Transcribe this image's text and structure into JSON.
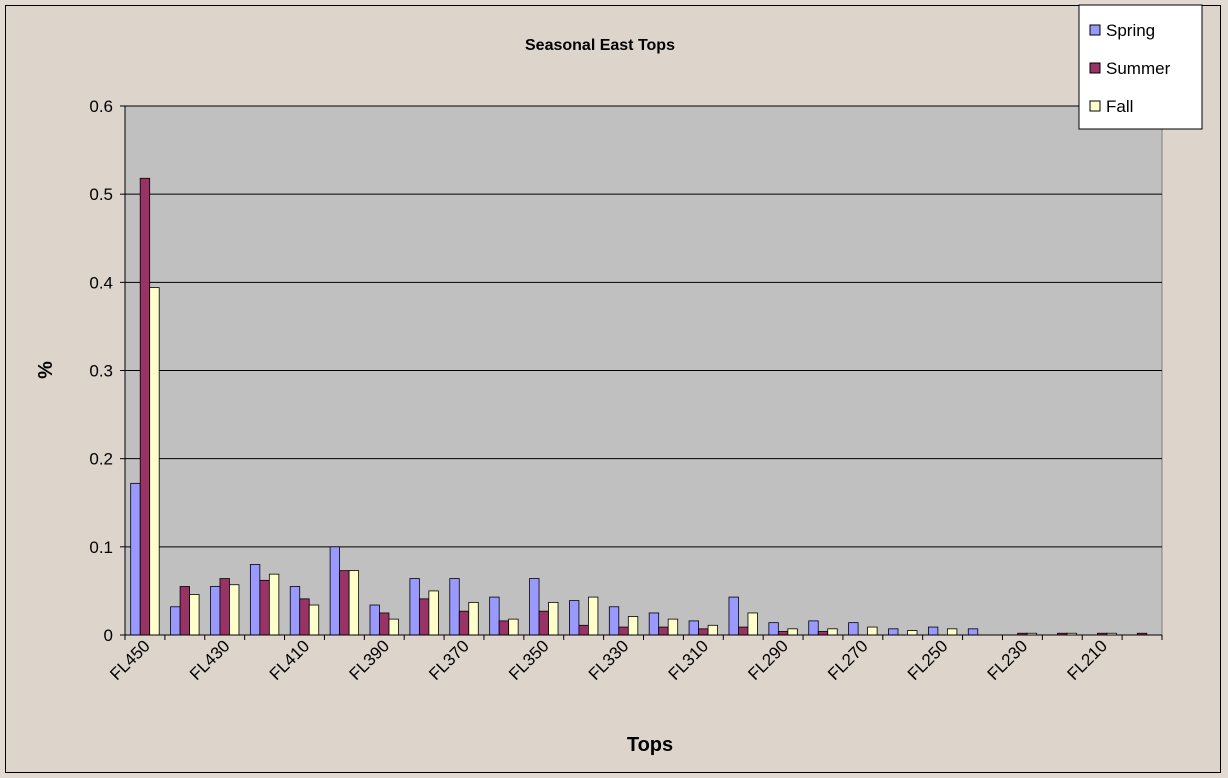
{
  "chart_data": {
    "type": "bar",
    "title": "Seasonal East Tops",
    "xlabel": "Tops",
    "ylabel": "%",
    "ylim": [
      0,
      0.6
    ],
    "yticks": [
      "0",
      "0.1",
      "0.2",
      "0.3",
      "0.4",
      "0.5",
      "0.6"
    ],
    "grid": true,
    "legend_position": "top-right",
    "categories": [
      "FL450",
      "FL440",
      "FL430",
      "FL420",
      "FL410",
      "FL400",
      "FL390",
      "FL380",
      "FL370",
      "FL360",
      "FL350",
      "FL340",
      "FL330",
      "FL320",
      "FL310",
      "FL300",
      "FL290",
      "FL280",
      "FL270",
      "FL260",
      "FL250",
      "FL240",
      "FL230",
      "FL220",
      "FL210",
      "FL200"
    ],
    "xtick_labels_shown": [
      "FL450",
      "FL430",
      "FL410",
      "FL390",
      "FL370",
      "FL350",
      "FL330",
      "FL310",
      "FL290",
      "FL270",
      "FL250",
      "FL230",
      "FL210"
    ],
    "series": [
      {
        "name": "Spring",
        "color": "#9999ff",
        "values": [
          0.172,
          0.032,
          0.055,
          0.08,
          0.055,
          0.1,
          0.034,
          0.064,
          0.064,
          0.043,
          0.064,
          0.039,
          0.032,
          0.025,
          0.016,
          0.043,
          0.014,
          0.016,
          0.014,
          0.007,
          0.009,
          0.007,
          0.0,
          0.0,
          0.0,
          0.0
        ]
      },
      {
        "name": "Summer",
        "color": "#993366",
        "values": [
          0.518,
          0.055,
          0.064,
          0.062,
          0.041,
          0.073,
          0.025,
          0.041,
          0.027,
          0.016,
          0.027,
          0.011,
          0.009,
          0.009,
          0.007,
          0.009,
          0.004,
          0.004,
          0.0,
          0.0,
          0.0,
          0.0,
          0.002,
          0.002,
          0.002,
          0.002
        ]
      },
      {
        "name": "Fall",
        "color": "#ffffcc",
        "values": [
          0.394,
          0.046,
          0.057,
          0.069,
          0.034,
          0.073,
          0.018,
          0.05,
          0.037,
          0.018,
          0.037,
          0.043,
          0.021,
          0.018,
          0.011,
          0.025,
          0.007,
          0.007,
          0.009,
          0.005,
          0.007,
          0.0,
          0.002,
          0.002,
          0.002,
          0.0
        ]
      }
    ]
  }
}
